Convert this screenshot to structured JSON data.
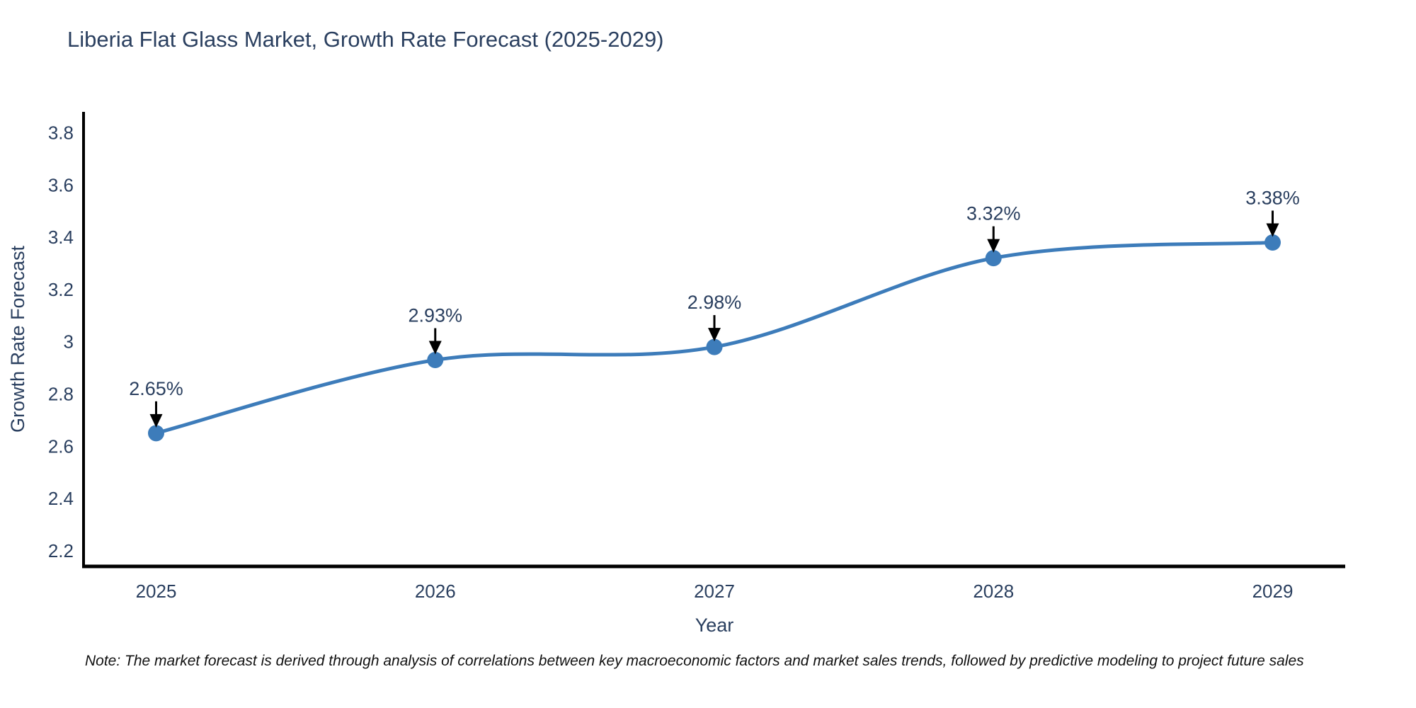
{
  "title": "Liberia Flat Glass Market, Growth Rate Forecast (2025-2029)",
  "note": "Note: The market forecast is derived through analysis of correlations between key macroeconomic factors and market sales trends, followed by predictive modeling to project future sales",
  "chart_data": {
    "type": "line",
    "title": "Liberia Flat Glass Market, Growth Rate Forecast (2025-2029)",
    "xlabel": "Year",
    "ylabel": "Growth Rate Forecast",
    "x": [
      2025,
      2026,
      2027,
      2028,
      2029
    ],
    "values": [
      2.65,
      2.93,
      2.98,
      3.32,
      3.38
    ],
    "point_labels": [
      "2.65%",
      "2.93%",
      "2.98%",
      "3.32%",
      "3.38%"
    ],
    "x_ticks": [
      2025,
      2026,
      2027,
      2028,
      2029
    ],
    "y_ticks": [
      2.2,
      2.4,
      2.6,
      2.8,
      3,
      3.2,
      3.4,
      3.6,
      3.8
    ],
    "xlim": [
      2024.74,
      2029.26
    ],
    "ylim": [
      2.14,
      3.88
    ],
    "line_shape": "spline",
    "grid": false,
    "legend": "none",
    "colors": {
      "line": "#3d7cba",
      "marker": "#3d7cba",
      "axis": "#000000",
      "text": "#2a3f5f",
      "annotation_text": "#2a3f5f",
      "annotation_arrow": "#000000",
      "note_text": "#111111",
      "background": "#ffffff"
    }
  }
}
